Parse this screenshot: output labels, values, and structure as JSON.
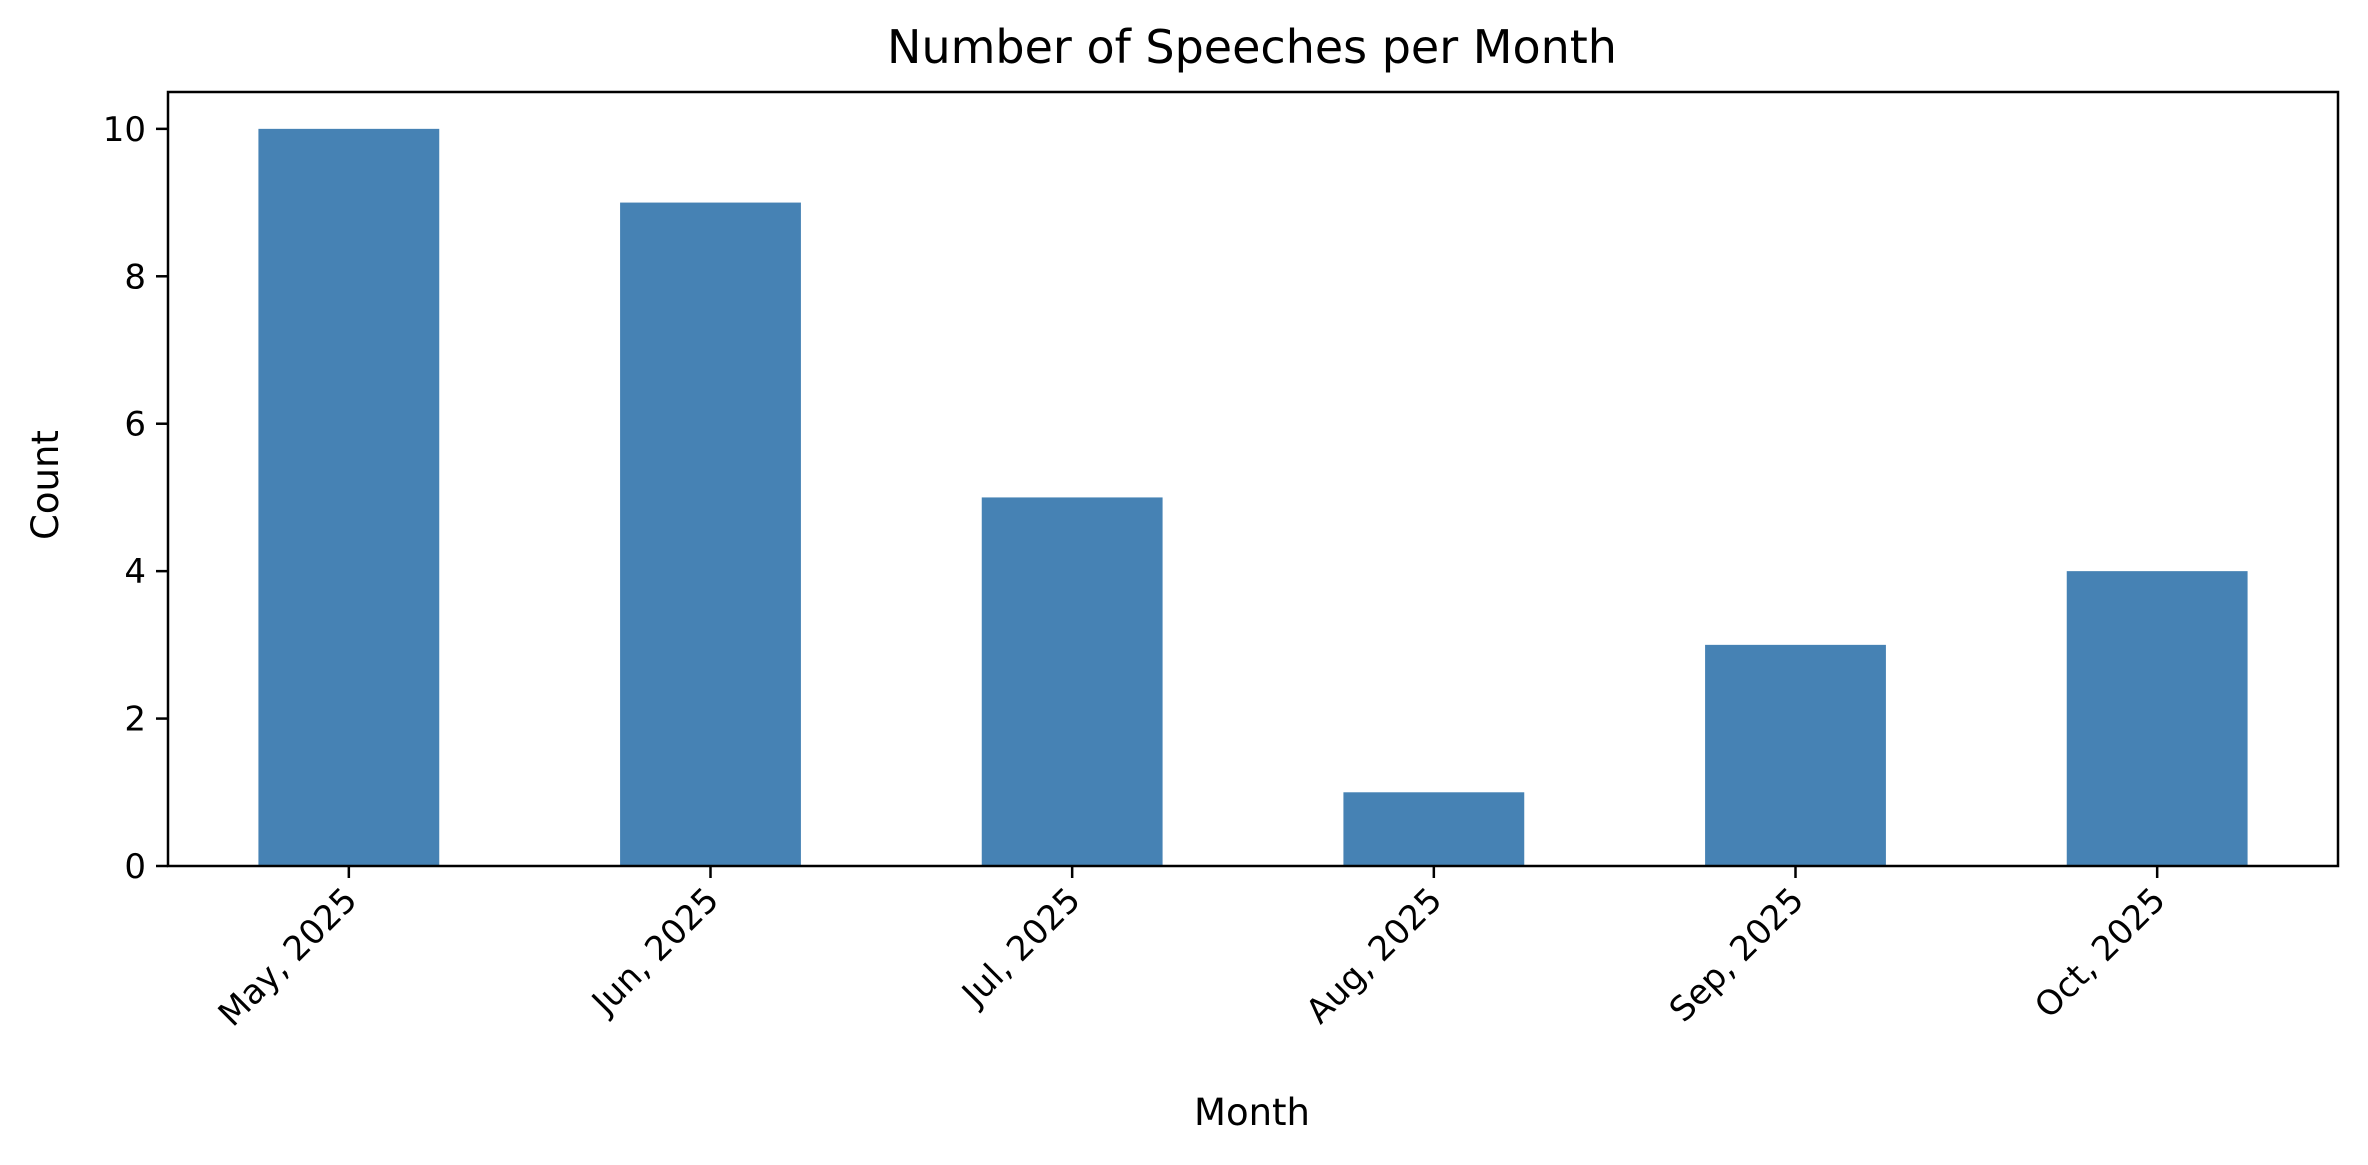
{
  "chart_data": {
    "type": "bar",
    "title": "Number of Speeches per Month",
    "xlabel": "Month",
    "ylabel": "Count",
    "categories": [
      "May, 2025",
      "Jun, 2025",
      "Jul, 2025",
      "Aug, 2025",
      "Sep, 2025",
      "Oct, 2025"
    ],
    "values": [
      10,
      9,
      5,
      1,
      3,
      4
    ],
    "ylim": [
      0,
      10.5
    ],
    "yticks": [
      0,
      2,
      4,
      6,
      8,
      10
    ],
    "grid": false,
    "legend": "none",
    "bar_color": "#4682b4"
  }
}
